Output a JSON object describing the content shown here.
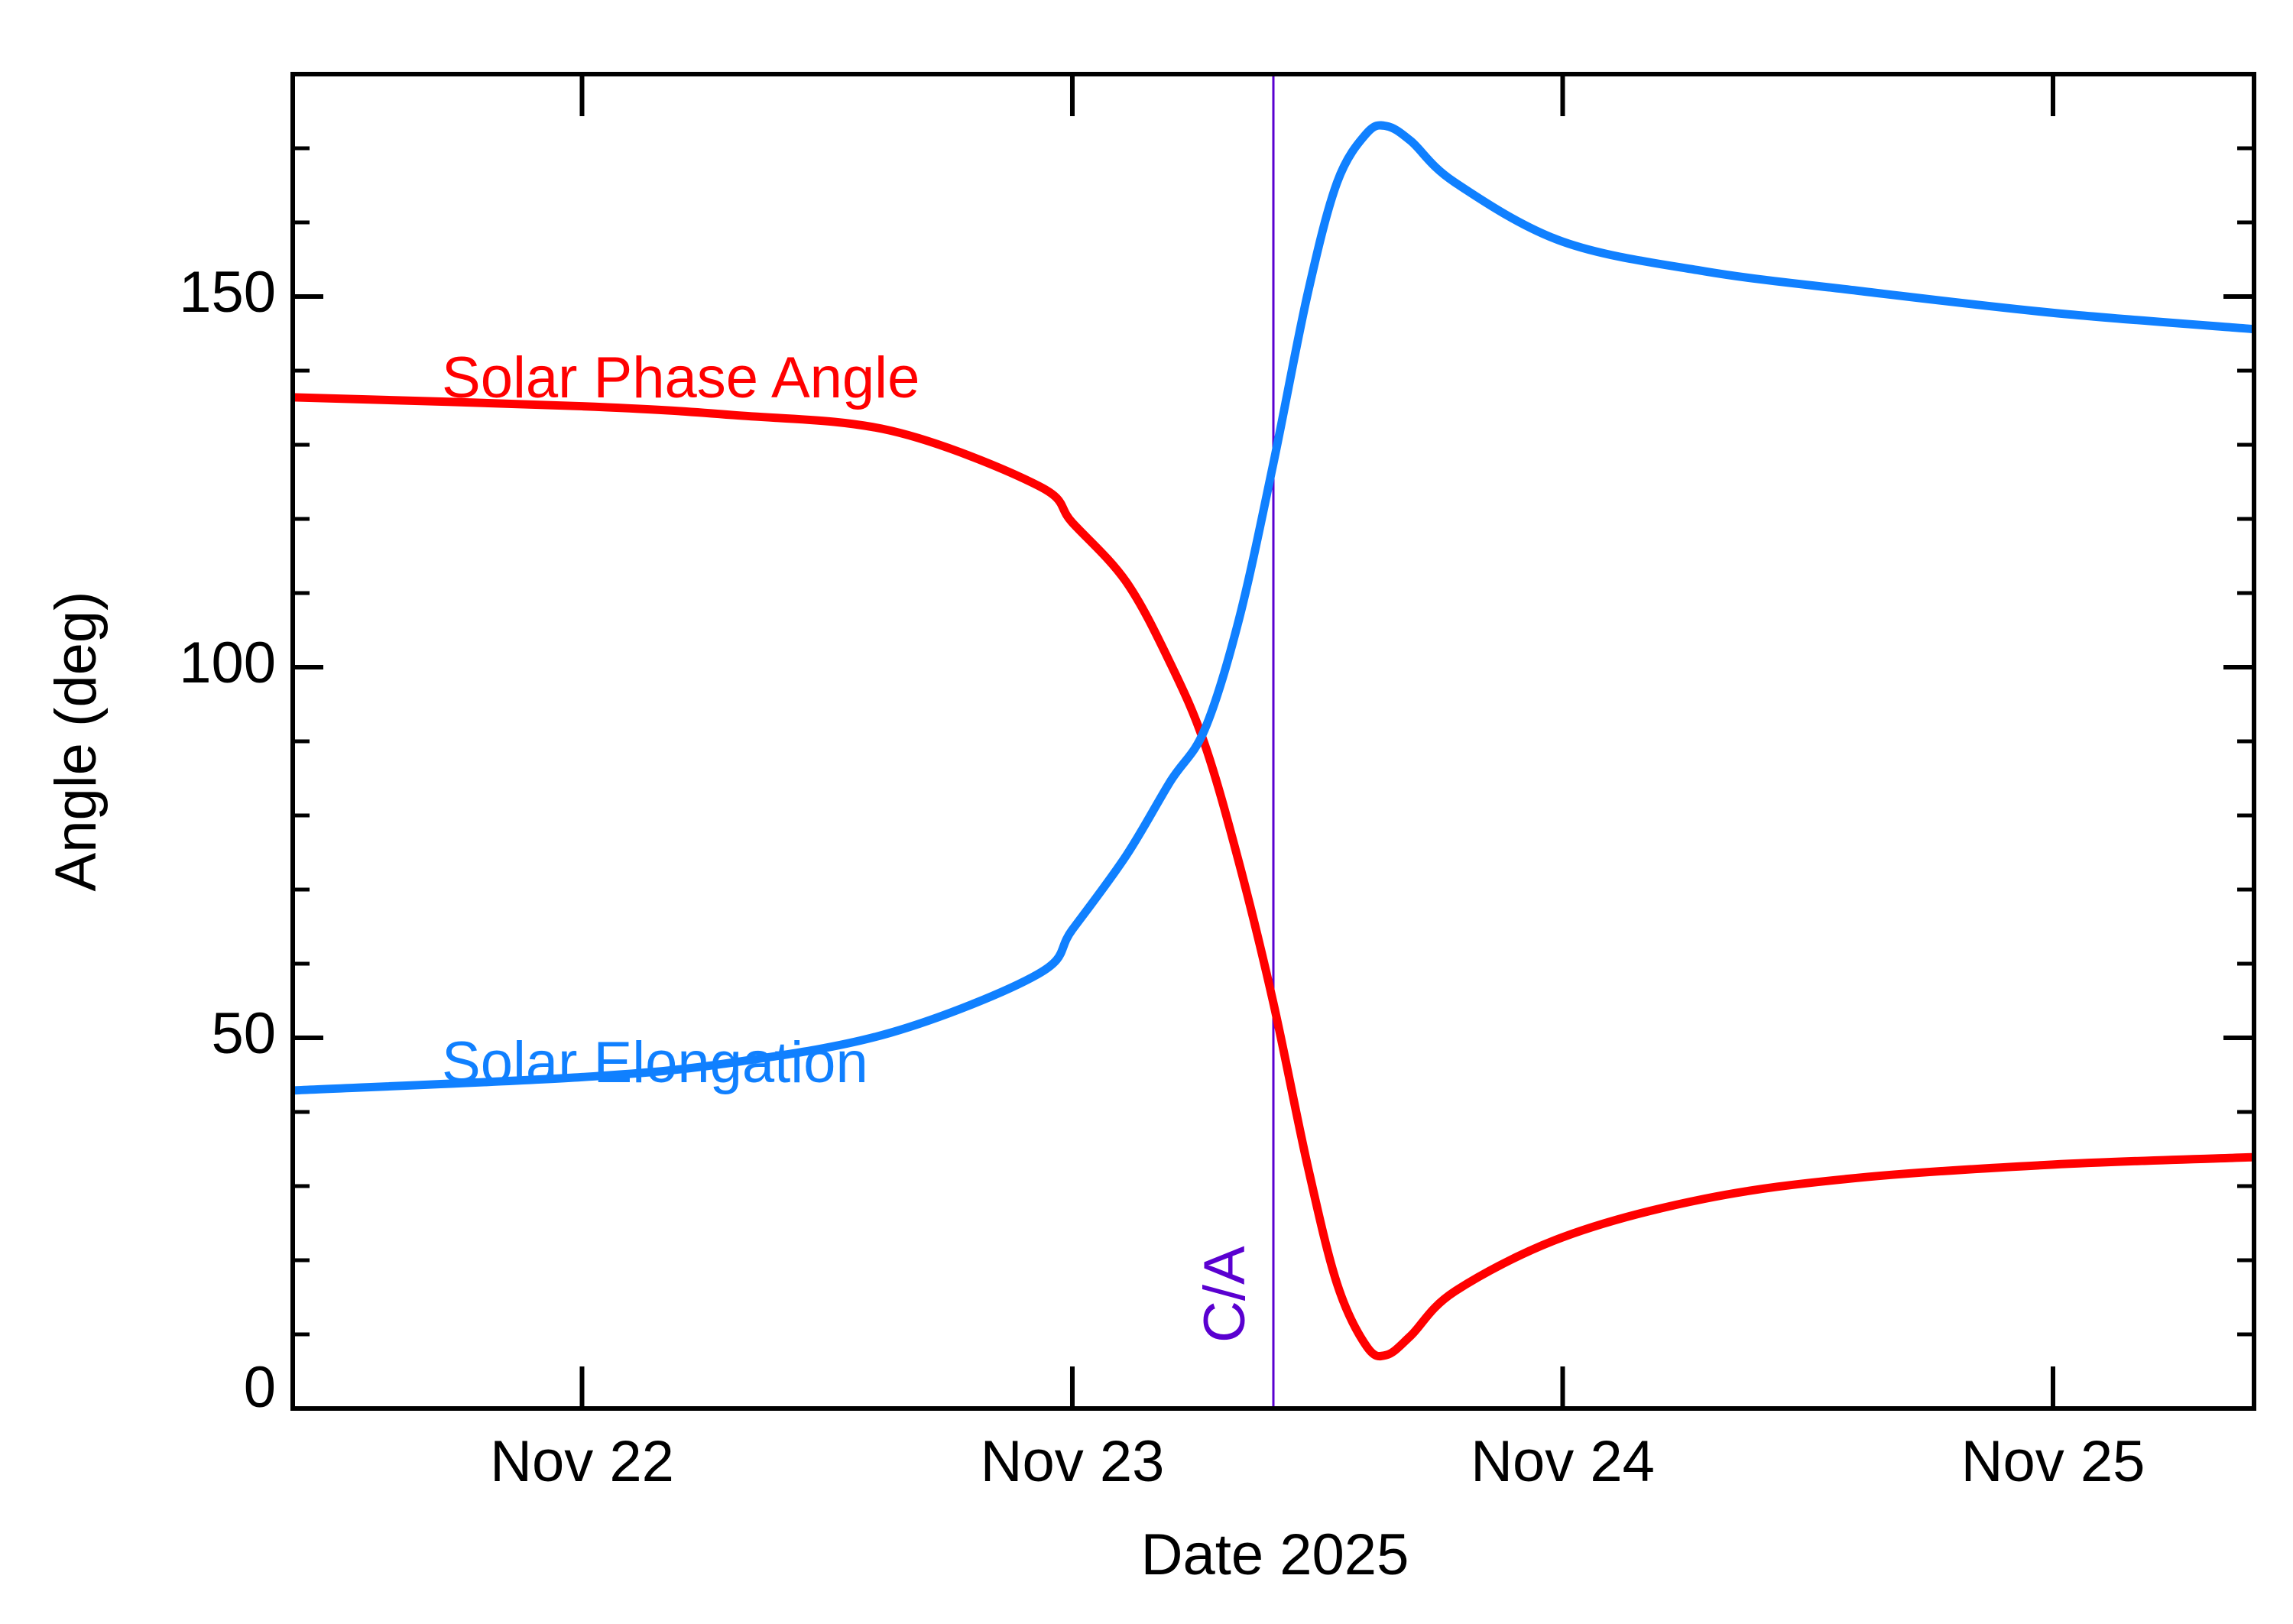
{
  "chart_data": {
    "type": "line",
    "xlabel": "Date 2025",
    "ylabel": "Angle (deg)",
    "x": [
      21.41,
      22.0,
      22.31,
      22.63,
      22.93,
      23.0,
      23.11,
      23.2,
      23.27,
      23.34,
      23.41,
      23.48,
      23.54,
      23.6,
      23.64,
      23.69,
      23.78,
      24.0,
      24.29,
      24.6,
      25.0,
      25.41
    ],
    "series": [
      {
        "name": "Solar Phase Angle",
        "color": "#ff0000",
        "values": [
          136.4,
          135.2,
          134.0,
          131.9,
          124.5,
          119.5,
          111.5,
          100.5,
          89.6,
          73.6,
          54.7,
          32.7,
          16.8,
          8.4,
          7.2,
          9.8,
          15.8,
          23.1,
          28.3,
          31.1,
          32.9,
          33.9
        ]
      },
      {
        "name": "Solar Elongation",
        "color": "#1080ff",
        "values": [
          42.9,
          44.7,
          46.7,
          50.7,
          58.6,
          64.6,
          74.6,
          84.6,
          91.6,
          106.5,
          127.5,
          150.4,
          165.4,
          172.0,
          173.0,
          171.0,
          165.4,
          157.4,
          153.4,
          150.8,
          147.8,
          145.6
        ]
      }
    ],
    "xlim": [
      21.41,
      25.41
    ],
    "xticks": [
      {
        "value": 22,
        "label": "Nov 22"
      },
      {
        "value": 23,
        "label": "Nov 23"
      },
      {
        "value": 24,
        "label": "Nov 24"
      },
      {
        "value": 25,
        "label": "Nov 25"
      }
    ],
    "ylim": [
      0,
      180
    ],
    "yticks": [
      0,
      50,
      100,
      150
    ],
    "yminorticks": [
      10,
      20,
      30,
      40,
      60,
      70,
      80,
      90,
      110,
      120,
      130,
      140,
      160,
      170
    ],
    "closest_approach": {
      "x": 23.41,
      "label": "C/A",
      "color": "#5a00d0"
    }
  }
}
